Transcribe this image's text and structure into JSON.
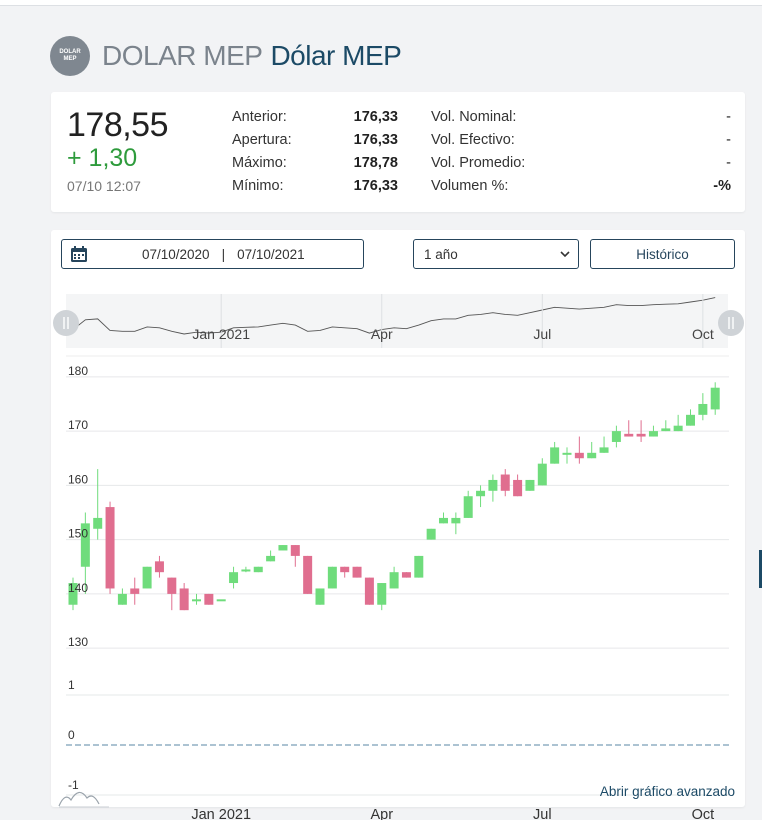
{
  "header": {
    "logo_line1": "DOLAR",
    "logo_line2": "MEP",
    "ticker": "DOLAR MEP",
    "name": "Dólar MEP"
  },
  "quote": {
    "price": "178,55",
    "change": "+ 1,30",
    "time": "07/10 12:07",
    "stats_left": [
      {
        "label": "Anterior:",
        "value": "176,33"
      },
      {
        "label": "Apertura:",
        "value": "176,33"
      },
      {
        "label": "Máximo:",
        "value": "178,78"
      },
      {
        "label": "Mínimo:",
        "value": "176,33"
      }
    ],
    "stats_right": [
      {
        "label": "Vol. Nominal:",
        "value": "-"
      },
      {
        "label": "Vol. Efectivo:",
        "value": "-"
      },
      {
        "label": "Vol. Promedio:",
        "value": "-"
      },
      {
        "label": "Volumen %:",
        "value": "-%"
      }
    ]
  },
  "controls": {
    "date_from": "07/10/2020",
    "date_sep": "|",
    "date_to": "07/10/2021",
    "period": "1 año",
    "history_button": "Histórico",
    "advanced_link": "Abrir gráfico avanzado"
  },
  "colors": {
    "up": "#6fdc7c",
    "down": "#e06e8f",
    "grid": "#e6e8ea",
    "accent": "#1c4a66"
  },
  "chart_data": {
    "type": "candlestick",
    "x_ticks": [
      "Jan 2021",
      "Apr",
      "Jul",
      "Oct"
    ],
    "x_tick_weeks": [
      12,
      25,
      38,
      51
    ],
    "navigator_ticks": [
      "Jan 2021",
      "Apr",
      "Jul",
      "Oct"
    ],
    "price_axis": {
      "min": 128,
      "max": 182,
      "ticks": [
        180,
        170,
        160,
        150,
        140,
        130
      ]
    },
    "volume_axis": {
      "min": -1,
      "max": 1,
      "ticks": [
        1,
        0,
        -1
      ]
    },
    "candles": [
      [
        0,
        138,
        142,
        137,
        143
      ],
      [
        1,
        145,
        153,
        140,
        155
      ],
      [
        2,
        152,
        154,
        150,
        163
      ],
      [
        3,
        156,
        141,
        140,
        157
      ],
      [
        4,
        138,
        140,
        138,
        141
      ],
      [
        5,
        141,
        140,
        138,
        143
      ],
      [
        6,
        141,
        145,
        141,
        145
      ],
      [
        7,
        146,
        144,
        143,
        147
      ],
      [
        8,
        143,
        140,
        137,
        143
      ],
      [
        9,
        141,
        137,
        137,
        142
      ],
      [
        10,
        139,
        139,
        138,
        140
      ],
      [
        11,
        140,
        138,
        138,
        140
      ],
      [
        12,
        139,
        139,
        139,
        139
      ],
      [
        13,
        142,
        144,
        141,
        145
      ],
      [
        14,
        144.5,
        144.5,
        144,
        145
      ],
      [
        15,
        144,
        145,
        144,
        145
      ],
      [
        16,
        146,
        147,
        146,
        148
      ],
      [
        17,
        148,
        149,
        148,
        149
      ],
      [
        18,
        149,
        147,
        145,
        149
      ],
      [
        19,
        147,
        140,
        140,
        147
      ],
      [
        20,
        138,
        141,
        138,
        141
      ],
      [
        21,
        141,
        145,
        141,
        145
      ],
      [
        22,
        145,
        144,
        143,
        145
      ],
      [
        23,
        145,
        143,
        143,
        145
      ],
      [
        24,
        143,
        138,
        138,
        143
      ],
      [
        25,
        138,
        142,
        137,
        142
      ],
      [
        26,
        141,
        144,
        141,
        145
      ],
      [
        27,
        144,
        143,
        143,
        144
      ],
      [
        28,
        143,
        147,
        143,
        147
      ],
      [
        29,
        150,
        152,
        150,
        152
      ],
      [
        30,
        153,
        154,
        153,
        155
      ],
      [
        31,
        153,
        154,
        151,
        155
      ],
      [
        32,
        154,
        158,
        154,
        159
      ],
      [
        33,
        158,
        159,
        156,
        160
      ],
      [
        34,
        159,
        161,
        157,
        162
      ],
      [
        35,
        162,
        159,
        158,
        163
      ],
      [
        36,
        161,
        158,
        158,
        162
      ],
      [
        37,
        159,
        161,
        159,
        161
      ],
      [
        38,
        160,
        164,
        160,
        165
      ],
      [
        39,
        164,
        167,
        164,
        168
      ],
      [
        40,
        166,
        166,
        164,
        167
      ],
      [
        41,
        166,
        165,
        164,
        169
      ],
      [
        42,
        165,
        166,
        165,
        168
      ],
      [
        43,
        166,
        167,
        166,
        169
      ],
      [
        44,
        168,
        170,
        167,
        171
      ],
      [
        45,
        169.5,
        169,
        169,
        172
      ],
      [
        46,
        169.5,
        169,
        168,
        172
      ],
      [
        47,
        169,
        170,
        169,
        171
      ],
      [
        48,
        170,
        170.5,
        170,
        172
      ],
      [
        49,
        170,
        171,
        170,
        173
      ],
      [
        50,
        171,
        173,
        171,
        174
      ],
      [
        51,
        173,
        175,
        172,
        177
      ],
      [
        52,
        174,
        178,
        173,
        179
      ]
    ]
  }
}
